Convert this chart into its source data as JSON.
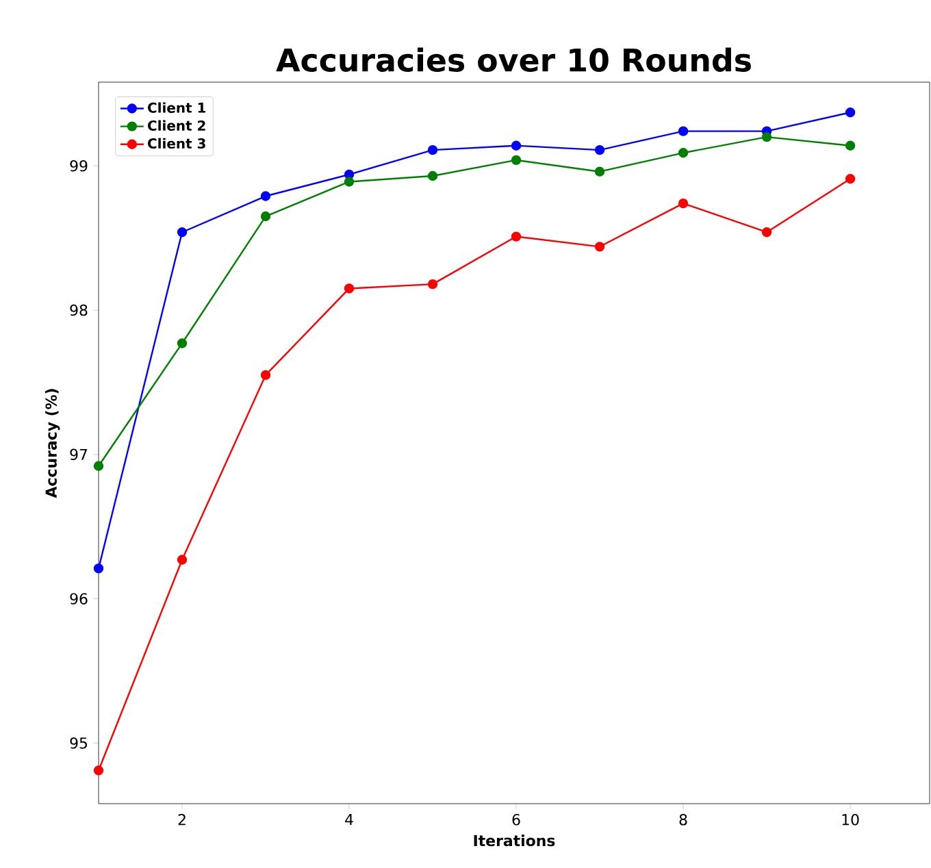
{
  "chart_data": {
    "type": "line",
    "title": "Accuracies over 10 Rounds",
    "xlabel": "Iterations",
    "ylabel": "Accuracy (%)",
    "x": [
      1,
      2,
      3,
      4,
      5,
      6,
      7,
      8,
      9,
      10
    ],
    "series": [
      {
        "name": "Client 1",
        "color": "#0000ff",
        "values": [
          96.21,
          98.54,
          98.79,
          98.94,
          99.11,
          99.14,
          99.11,
          99.24,
          99.24,
          99.37
        ]
      },
      {
        "name": "Client 2",
        "color": "#008000",
        "values": [
          96.92,
          97.77,
          98.65,
          98.89,
          98.93,
          99.04,
          98.96,
          99.09,
          99.2,
          99.14
        ]
      },
      {
        "name": "Client 3",
        "color": "#ff0000",
        "values": [
          94.81,
          96.27,
          97.55,
          98.15,
          98.18,
          98.51,
          98.44,
          98.74,
          98.54,
          98.91
        ]
      }
    ],
    "xlim": [
      1,
      10.95
    ],
    "ylim": [
      94.58,
      99.58
    ],
    "xticks": [
      2,
      4,
      6,
      8,
      10
    ],
    "yticks": [
      95,
      96,
      97,
      98,
      99
    ],
    "legend": "top left",
    "marker": "circle",
    "line_style": "solid",
    "grid": false
  }
}
